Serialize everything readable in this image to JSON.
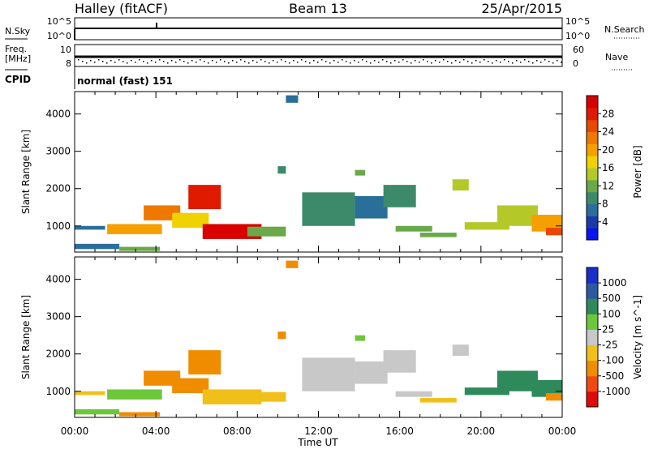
{
  "header": {
    "station": "Halley (fitACF)",
    "beam": "Beam 13",
    "date": "25/Apr/2015"
  },
  "status_panels": {
    "nsky_label": "N.Sky",
    "nsky_ticks": [
      "10^5",
      "10^0"
    ],
    "nsearch_label": "N.Search",
    "nsearch_ticks": [
      "10^5",
      "10^0"
    ],
    "freq_label": "Freq.",
    "freq_unit": "[MHz]",
    "freq_ticks": [
      "10",
      "8"
    ],
    "nave_label": "Nave",
    "nave_ticks": [
      "60",
      "0"
    ],
    "cpid_label": "CPID",
    "cpid_value": "normal (fast) 151"
  },
  "time_axis": {
    "label": "Time UT",
    "ticks": [
      "00:00",
      "04:00",
      "08:00",
      "12:00",
      "16:00",
      "20:00",
      "00:00"
    ]
  },
  "range_axis": {
    "label": "Slant Range [km]",
    "ticks": [
      "1000",
      "2000",
      "3000",
      "4000"
    ]
  },
  "power_scale": {
    "label": "Power [dB]",
    "ticks": [
      "4",
      "8",
      "12",
      "16",
      "20",
      "24",
      "28"
    ],
    "colors": [
      "#0a14f0",
      "#1a3aa8",
      "#2a6e9a",
      "#3c8a6a",
      "#6aa84a",
      "#b4c828",
      "#f0d200",
      "#f5a000",
      "#ef7800",
      "#e84800",
      "#e01a00",
      "#d80000"
    ]
  },
  "velocity_scale": {
    "label": "Velocity [m s^-1]",
    "ticks": [
      "1000",
      "500",
      "100",
      "25",
      "-25",
      "-100",
      "-500",
      "-1000"
    ],
    "colors": [
      "#1a2ec8",
      "#2c5aa0",
      "#2e8a5a",
      "#6cc83a",
      "#c8c8c8",
      "#f0c018",
      "#f08c00",
      "#f04a10",
      "#e00a0a"
    ]
  },
  "chart_data": {
    "type": "heatmap",
    "x_range_hours": [
      0,
      24
    ],
    "y_range_km": [
      300,
      4600
    ],
    "panels": [
      "power",
      "velocity"
    ],
    "echo_regions": [
      {
        "t0": 0.0,
        "t1": 2.2,
        "r0": 380,
        "r1": 520,
        "power": 7,
        "velocity": 60
      },
      {
        "t0": 0.0,
        "t1": 1.5,
        "r0": 900,
        "r1": 1000,
        "power": 6,
        "velocity": -30
      },
      {
        "t0": 1.6,
        "t1": 4.3,
        "r0": 780,
        "r1": 1050,
        "power": 18,
        "velocity": 40
      },
      {
        "t0": 2.2,
        "t1": 4.2,
        "r0": 330,
        "r1": 440,
        "power": 12,
        "velocity": -200
      },
      {
        "t0": 3.4,
        "t1": 5.2,
        "r0": 1150,
        "r1": 1550,
        "power": 20,
        "velocity": -300
      },
      {
        "t0": 4.8,
        "t1": 6.6,
        "r0": 950,
        "r1": 1350,
        "power": 15,
        "velocity": -250
      },
      {
        "t0": 5.6,
        "t1": 7.2,
        "r0": 1450,
        "r1": 2100,
        "power": 26,
        "velocity": -400
      },
      {
        "t0": 6.3,
        "t1": 9.2,
        "r0": 650,
        "r1": 1050,
        "power": 28,
        "velocity": -60
      },
      {
        "t0": 8.5,
        "t1": 10.4,
        "r0": 720,
        "r1": 980,
        "power": 11,
        "velocity": -40
      },
      {
        "t0": 10.0,
        "t1": 10.4,
        "r0": 2400,
        "r1": 2600,
        "power": 8,
        "velocity": -200
      },
      {
        "t0": 10.4,
        "t1": 11.0,
        "r0": 4300,
        "r1": 4500,
        "power": 6,
        "velocity": -150
      },
      {
        "t0": 11.2,
        "t1": 13.8,
        "r0": 1000,
        "r1": 1900,
        "power": 8,
        "velocity": 10
      },
      {
        "t0": 13.8,
        "t1": 14.3,
        "r0": 2350,
        "r1": 2500,
        "power": 10,
        "velocity": 80
      },
      {
        "t0": 13.8,
        "t1": 15.4,
        "r0": 1200,
        "r1": 1800,
        "power": 7,
        "velocity": -10
      },
      {
        "t0": 15.2,
        "t1": 16.8,
        "r0": 1500,
        "r1": 2100,
        "power": 9,
        "velocity": 15
      },
      {
        "t0": 15.8,
        "t1": 17.6,
        "r0": 850,
        "r1": 1000,
        "power": 10,
        "velocity": -20
      },
      {
        "t0": 17.0,
        "t1": 18.8,
        "r0": 700,
        "r1": 820,
        "power": 12,
        "velocity": -60
      },
      {
        "t0": 18.6,
        "t1": 19.4,
        "r0": 1950,
        "r1": 2250,
        "power": 14,
        "velocity": 20
      },
      {
        "t0": 19.2,
        "t1": 21.4,
        "r0": 900,
        "r1": 1100,
        "power": 13,
        "velocity": 120
      },
      {
        "t0": 20.8,
        "t1": 22.8,
        "r0": 1000,
        "r1": 1550,
        "power": 14,
        "velocity": 150
      },
      {
        "t0": 22.5,
        "t1": 24.0,
        "r0": 850,
        "r1": 1300,
        "power": 19,
        "velocity": 160
      },
      {
        "t0": 23.2,
        "t1": 24.0,
        "r0": 750,
        "r1": 950,
        "power": 24,
        "velocity": -300
      }
    ]
  }
}
